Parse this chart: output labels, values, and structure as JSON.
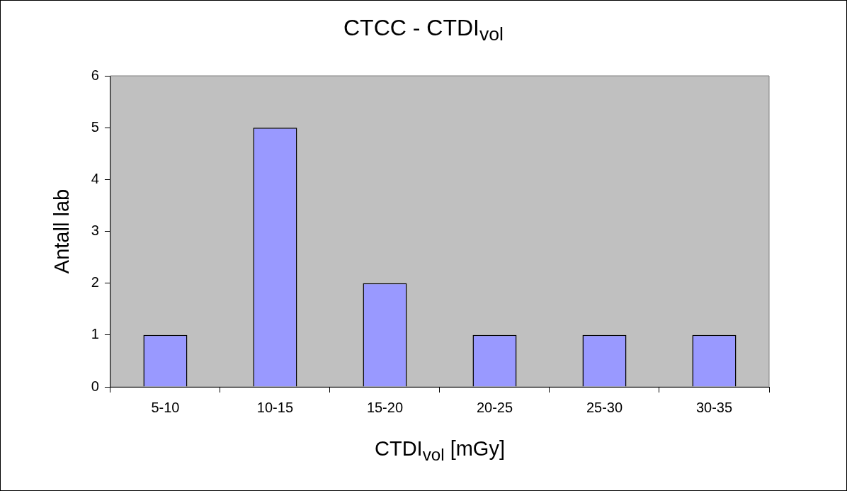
{
  "chart_data": {
    "type": "bar",
    "title": "CTCC - CTDI$_{vol}$",
    "xlabel": "CTDI$_{vol}$ [mGy]",
    "ylabel": "Antall lab",
    "categories": [
      "5-10",
      "10-15",
      "15-20",
      "20-25",
      "25-30",
      "30-35"
    ],
    "values": [
      1,
      5,
      2,
      1,
      1,
      1
    ],
    "color": "#9999ff",
    "ylim": [
      0,
      6
    ],
    "yticks": [
      0,
      1,
      2,
      3,
      4,
      5,
      6
    ],
    "grid": false,
    "legend": false
  }
}
